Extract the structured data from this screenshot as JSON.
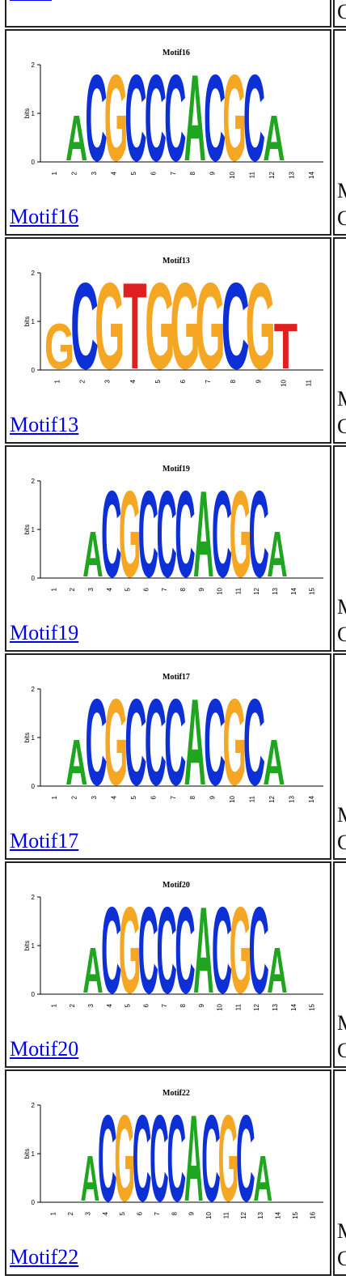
{
  "top_partial": {
    "side_char": "C"
  },
  "rows": [
    {
      "title": "Motif16",
      "link": "Motif16",
      "side_line1": "M",
      "side_line2": "C",
      "ticks": [
        "1",
        "2",
        "3",
        "4",
        "5",
        "6",
        "7",
        "8",
        "9",
        "10",
        "11",
        "12",
        "13",
        "14"
      ],
      "letters": "ACGCCCACGCA"
    },
    {
      "title": "Motif13",
      "link": "Motif13",
      "side_line1": "M",
      "side_line2": "C",
      "ticks": [
        "1",
        "2",
        "3",
        "4",
        "5",
        "6",
        "7",
        "8",
        "9",
        "10",
        "11"
      ],
      "letters": "GCGTGGGCGT"
    },
    {
      "title": "Motif19",
      "link": "Motif19",
      "side_line1": "M",
      "side_line2": "C",
      "ticks": [
        "1",
        "2",
        "3",
        "4",
        "5",
        "6",
        "7",
        "8",
        "9",
        "10",
        "11",
        "12",
        "13",
        "14",
        "15"
      ],
      "letters": "ACGCCCACGCA"
    },
    {
      "title": "Motif17",
      "link": "Motif17",
      "side_line1": "M",
      "side_line2": "C",
      "ticks": [
        "1",
        "2",
        "3",
        "4",
        "5",
        "6",
        "7",
        "8",
        "9",
        "10",
        "11",
        "12",
        "13",
        "14"
      ],
      "letters": "ACGCCCACGCA"
    },
    {
      "title": "Motif20",
      "link": "Motif20",
      "side_line1": "M",
      "side_line2": "C",
      "ticks": [
        "1",
        "2",
        "3",
        "4",
        "5",
        "6",
        "7",
        "8",
        "9",
        "10",
        "11",
        "12",
        "13",
        "14",
        "15"
      ],
      "letters": "ACGCCCACGCA"
    },
    {
      "title": "Motif22",
      "link": "Motif22",
      "side_line1": "M",
      "side_line2": "C",
      "ticks": [
        "1",
        "2",
        "3",
        "4",
        "5",
        "6",
        "7",
        "8",
        "9",
        "10",
        "11",
        "12",
        "13",
        "14",
        "15",
        "16"
      ],
      "letters": "ACGCCCACGCA"
    }
  ],
  "axis": {
    "ylabel": "bits",
    "yticks": [
      "0",
      "1",
      "2"
    ]
  },
  "colors": {
    "A": "#1fa51f",
    "C": "#0d2fd6",
    "G": "#f5a623",
    "T": "#e02020",
    "link": "#0000ee"
  }
}
